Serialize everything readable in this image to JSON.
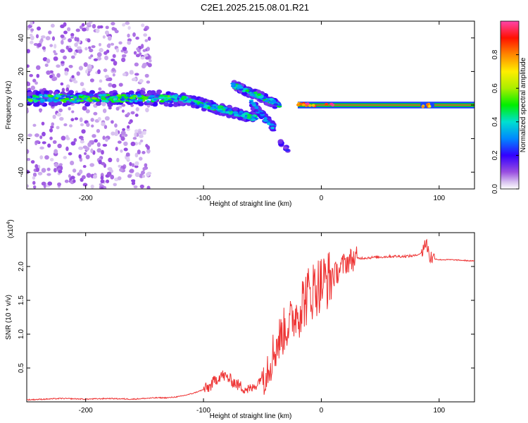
{
  "title": "C2E1.2025.215.08.01.R21",
  "chart_data": [
    {
      "type": "heatmap",
      "xlabel": "Height of straight line (km)",
      "ylabel": "Frequency (Hz)",
      "xlim": [
        -250,
        130
      ],
      "ylim": [
        -50,
        50
      ],
      "xticks": [
        -200,
        -100,
        0,
        100
      ],
      "yticks": [
        -40,
        -20,
        0,
        20,
        40
      ],
      "colorbar": {
        "label": "Normalized spectral amplitude",
        "range": [
          0,
          1
        ],
        "ticks": [
          "0.0",
          "0.2",
          "0.4",
          "0.6",
          "0.8"
        ],
        "tick_values": [
          0,
          0.2,
          0.4,
          0.6,
          0.8
        ]
      },
      "features": [
        {
          "name": "noise region",
          "x": [
            -250,
            -145
          ],
          "y": [
            -50,
            50
          ],
          "amplitude": 0.1
        },
        {
          "name": "main band",
          "x": [
            -250,
            -120
          ],
          "y_center": 4,
          "amplitude": 0.45
        },
        {
          "name": "descending band 1",
          "x": [
            -120,
            -55
          ],
          "y_start": 4,
          "y_end": -8,
          "amplitude": 0.4
        },
        {
          "name": "descending band 2",
          "x": [
            -75,
            -35
          ],
          "y_start": 12,
          "y_end": 0,
          "amplitude": 0.4
        },
        {
          "name": "descending band 3",
          "x": [
            -60,
            -40
          ],
          "y_start": 2,
          "y_end": -14,
          "amplitude": 0.3
        },
        {
          "name": "isolated streak",
          "x": [
            -35,
            -28
          ],
          "y_start": -22,
          "y_end": -27,
          "amplitude": 0.2
        },
        {
          "name": "carrier line",
          "x": [
            -20,
            130
          ],
          "y_center": 0,
          "amplitude": 0.95
        },
        {
          "name": "peak cluster",
          "x": [
            85,
            95
          ],
          "y_center": 0,
          "amplitude": 0.8
        }
      ]
    },
    {
      "type": "line",
      "xlabel": "Height of straight line (km)",
      "ylabel": "SNR (10 * v/v)",
      "multiplier": "(x10",
      "multiplier_exp": "4",
      "multiplier_close": ")",
      "xlim": [
        -250,
        130
      ],
      "ylim": [
        0,
        2.5
      ],
      "xticks": [
        -200,
        -100,
        0,
        100
      ],
      "yticks": [
        "0.5",
        "1.0",
        "1.5",
        "2.0"
      ],
      "ytick_values": [
        0.5,
        1.0,
        1.5,
        2.0
      ],
      "series": [
        {
          "color": "#ee3333",
          "x": [
            -250,
            -220,
            -200,
            -180,
            -160,
            -140,
            -130,
            -120,
            -110,
            -100,
            -95,
            -90,
            -85,
            -80,
            -75,
            -70,
            -65,
            -60,
            -55,
            -50,
            -45,
            -40,
            -35,
            -30,
            -25,
            -20,
            -15,
            -10,
            -5,
            0,
            5,
            10,
            15,
            20,
            25,
            30,
            40,
            50,
            60,
            70,
            80,
            85,
            88,
            90,
            92,
            95,
            100,
            110,
            120,
            130
          ],
          "values": [
            0.03,
            0.05,
            0.04,
            0.05,
            0.04,
            0.06,
            0.06,
            0.08,
            0.12,
            0.18,
            0.22,
            0.32,
            0.4,
            0.36,
            0.3,
            0.24,
            0.2,
            0.18,
            0.25,
            0.4,
            0.55,
            0.75,
            0.95,
            1.1,
            1.2,
            1.35,
            1.5,
            1.6,
            1.7,
            1.75,
            1.8,
            1.85,
            1.95,
            2.05,
            2.1,
            2.12,
            2.13,
            2.14,
            2.15,
            2.15,
            2.16,
            2.2,
            2.35,
            2.3,
            2.15,
            2.12,
            2.1,
            2.1,
            2.09,
            2.08
          ]
        }
      ]
    }
  ]
}
